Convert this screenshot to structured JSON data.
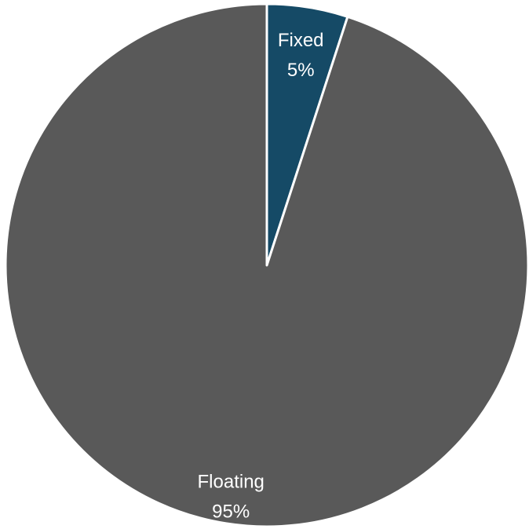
{
  "chart_data": {
    "type": "pie",
    "title": "",
    "categories": [
      "Fixed",
      "Floating"
    ],
    "values": [
      5,
      95
    ],
    "labels": [
      {
        "name": "Fixed",
        "percent": "5%"
      },
      {
        "name": "Floating",
        "percent": "95%"
      }
    ],
    "start": "12 o'clock",
    "direction": "clockwise",
    "colors": [
      "#154a66",
      "#595959"
    ],
    "slice_border_color": "#ffffff",
    "label_color": "#ffffff",
    "legend": "none"
  }
}
